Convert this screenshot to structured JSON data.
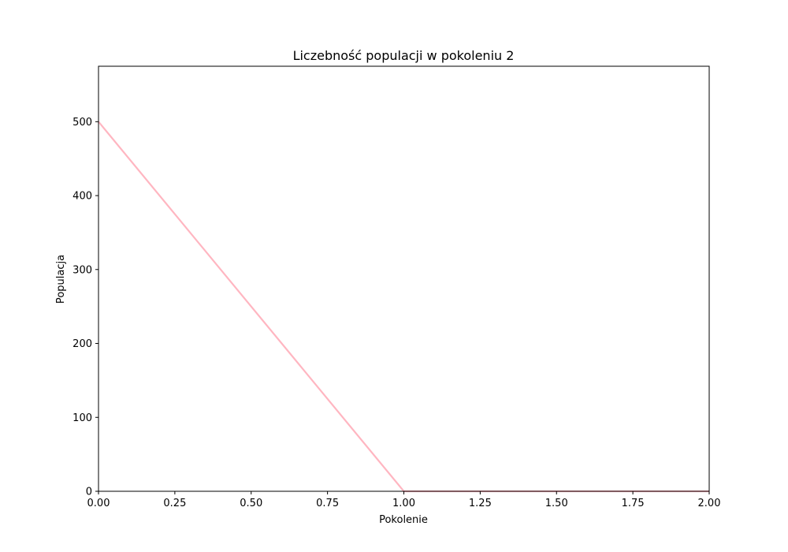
{
  "chart_data": {
    "type": "line",
    "title": "Liczebność populacji w pokoleniu 2",
    "xlabel": "Pokolenie",
    "ylabel": "Populacja",
    "xlim": [
      0,
      2
    ],
    "ylim": [
      0,
      575
    ],
    "grid": false,
    "xticks": [
      0,
      0.25,
      0.5,
      0.75,
      1,
      1.25,
      1.5,
      1.75,
      2
    ],
    "xtick_labels": [
      "0.00",
      "0.25",
      "0.50",
      "0.75",
      "1.00",
      "1.25",
      "1.50",
      "1.75",
      "2.00"
    ],
    "yticks": [
      0,
      100,
      200,
      300,
      400,
      500
    ],
    "ytick_labels": [
      "0",
      "100",
      "200",
      "300",
      "400",
      "500"
    ],
    "series": [
      {
        "x": [
          0,
          1,
          2
        ],
        "y": [
          500,
          0,
          0
        ],
        "color": "#ffb6c1"
      }
    ]
  }
}
